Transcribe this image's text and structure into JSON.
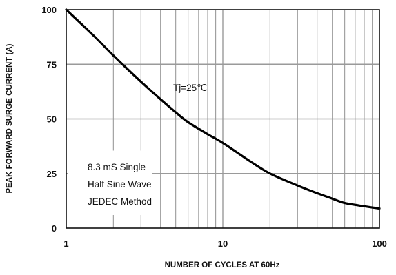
{
  "chart_data": {
    "type": "line",
    "xscale": "log",
    "xlim": [
      1,
      100
    ],
    "ylim": [
      0,
      100
    ],
    "xticks": [
      "1",
      "10",
      "100"
    ],
    "yticks": [
      "0",
      "25",
      "50",
      "75",
      "100"
    ],
    "xlabel": "NUMBER OF CYCLES AT 60Hz",
    "ylabel": "PEAK FORWARD SURGE CURRENT (A)",
    "grid": true,
    "series": [
      {
        "x": [
          1,
          1.5,
          2,
          3,
          4,
          5,
          6,
          8,
          10,
          15,
          20,
          30,
          40,
          50,
          60,
          80,
          100
        ],
        "y": [
          100,
          88,
          79,
          67,
          59,
          53,
          48.5,
          43,
          39,
          30.5,
          25,
          19.5,
          16,
          13.5,
          11.5,
          10,
          9
        ]
      }
    ],
    "annotations": {
      "temp": "Tj=25℃",
      "cond1": "8.3 mS Single",
      "cond2": "Half Sine Wave",
      "cond3": "JEDEC Method"
    }
  }
}
